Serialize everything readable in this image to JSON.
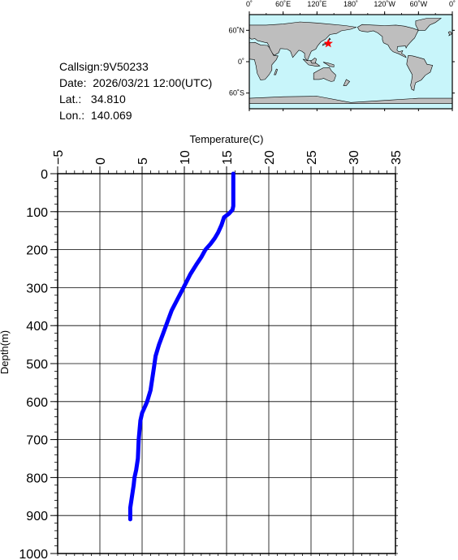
{
  "meta": {
    "callsign_label": "Callsign:",
    "callsign": "9V50233",
    "date_label": "Date:",
    "date": "2026/03/21 12:00(UTC)",
    "lat_label": "Lat.:",
    "lat": "34.810",
    "lon_label": "Lon.:",
    "lon": "140.069"
  },
  "map": {
    "lon_labels": [
      "0˚",
      "60˚E",
      "120˚E",
      "180˚",
      "120˚W",
      "60˚W",
      "0˚"
    ],
    "lat_labels": [
      "60˚N",
      "0˚",
      "60˚S"
    ],
    "ocean_color": "#c8f5fa",
    "land_color": "#bebebe",
    "marker_color": "#ff0000",
    "marker": {
      "lon": 140.069,
      "lat": 34.81
    }
  },
  "chart_data": {
    "type": "line",
    "xlabel": "Temperature(C)",
    "ylabel": "Depth(m)",
    "xlim": [
      -5,
      35
    ],
    "ylim": [
      0,
      1000
    ],
    "y_inverted": true,
    "x_axis_position": "top",
    "grid": true,
    "x_ticks": [
      -5,
      0,
      5,
      10,
      15,
      20,
      25,
      30,
      35
    ],
    "y_ticks": [
      0,
      100,
      200,
      300,
      400,
      500,
      600,
      700,
      800,
      900,
      1000
    ],
    "series": [
      {
        "color": "#0000ff",
        "temperature": [
          15.8,
          15.8,
          15.8,
          15.7,
          15.3,
          14.7,
          14.4,
          14.0,
          13.6,
          13.1,
          12.5,
          12.0,
          11.4,
          10.7,
          9.9,
          9.2,
          8.5,
          8.0,
          7.5,
          7.0,
          6.6,
          6.4,
          6.2,
          6.0,
          5.6,
          5.4,
          5.0,
          4.8,
          4.6,
          4.5,
          4.3,
          4.1,
          4.0,
          3.8,
          3.6,
          3.6
        ],
        "depth": [
          0,
          40,
          85,
          95,
          105,
          115,
          135,
          155,
          170,
          185,
          200,
          220,
          240,
          265,
          300,
          330,
          360,
          390,
          420,
          450,
          480,
          510,
          540,
          570,
          600,
          610,
          630,
          650,
          700,
          750,
          780,
          800,
          820,
          850,
          880,
          910
        ]
      }
    ]
  }
}
